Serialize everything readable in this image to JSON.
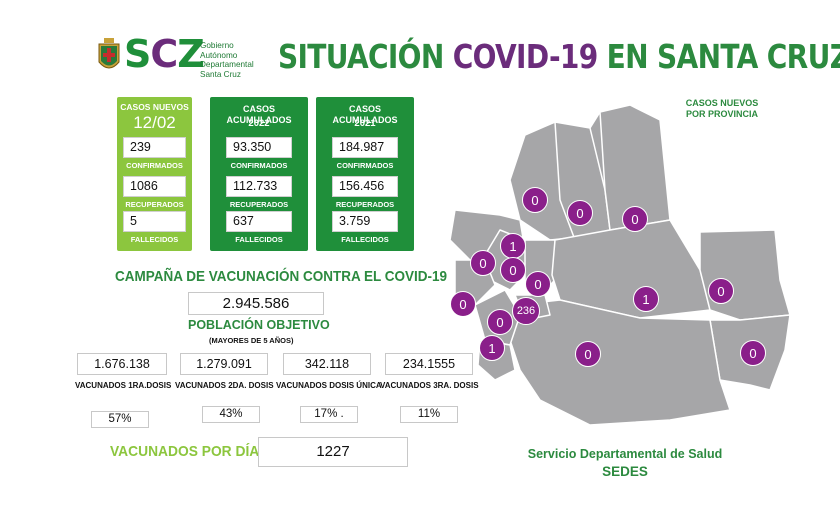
{
  "header": {
    "logo_text": "SCZ",
    "logo_sub": [
      "Gobierno",
      "Autónomo",
      "Departamental",
      "Santa Cruz"
    ],
    "title_part1": "SITUACIÓN ",
    "title_highlight": "COVID-19",
    "title_part2": " EN SANTA CRUZ"
  },
  "cards": {
    "nuevos": {
      "title": "CASOS NUEVOS",
      "date": "12/02",
      "confirmados": "239",
      "recuperados": "1086",
      "fallecidos": "5"
    },
    "acum_2022": {
      "title": "CASOS ACUMULADOS",
      "year": "2022",
      "confirmados": "93.350",
      "recuperados": "112.733",
      "fallecidos": "637"
    },
    "acum_2021": {
      "title": "CASOS ACUMULADOS",
      "year": "2021",
      "confirmados": "184.987",
      "recuperados": "156.456",
      "fallecidos": "3.759"
    },
    "labels": {
      "confirmados": "CONFIRMADOS",
      "recuperados": "RECUPERADOS",
      "fallecidos": "FALLECIDOS"
    }
  },
  "vaccination": {
    "section_title": "CAMPAÑA DE VACUNACIÓN CONTRA EL COVID-19",
    "poblacion_value": "2.945.586",
    "poblacion_label": "POBLACIÓN OBJETIVO",
    "poblacion_sub": "(MAYORES DE 5 AÑOS)",
    "doses": [
      {
        "value": "1.676.138",
        "label": "VACUNADOS 1RA.DOSIS",
        "percent": "57%"
      },
      {
        "value": "1.279.091",
        "label": "VACUNADOS 2DA. DOSIS",
        "percent": "43%"
      },
      {
        "value": "342.118",
        "label": "VACUNADOS DOSIS ÚNICA",
        "percent": "17% ."
      },
      {
        "value": "234.1555",
        "label": "VACUNADOS 3RA. DOSIS",
        "percent": "11%"
      }
    ],
    "por_dia_label": "VACUNADOS POR DÍA",
    "por_dia_value": "1227"
  },
  "map": {
    "title_line1": "CASOS NUEVOS",
    "title_line2": "POR PROVINCIA",
    "region_color": "#a6a6a8",
    "badge_color": "#8a1f8a",
    "badges": [
      "0",
      "0",
      "0",
      "1",
      "0",
      "0",
      "0",
      "0",
      "236",
      "0",
      "1",
      "1",
      "0",
      "0",
      "0"
    ]
  },
  "footer": {
    "line1": "Servicio Departamental de Salud",
    "line2": "SEDES"
  },
  "colors": {
    "green_dark": "#1f8f3a",
    "green_light": "#8cc63e",
    "purple": "#6b2c7b"
  }
}
